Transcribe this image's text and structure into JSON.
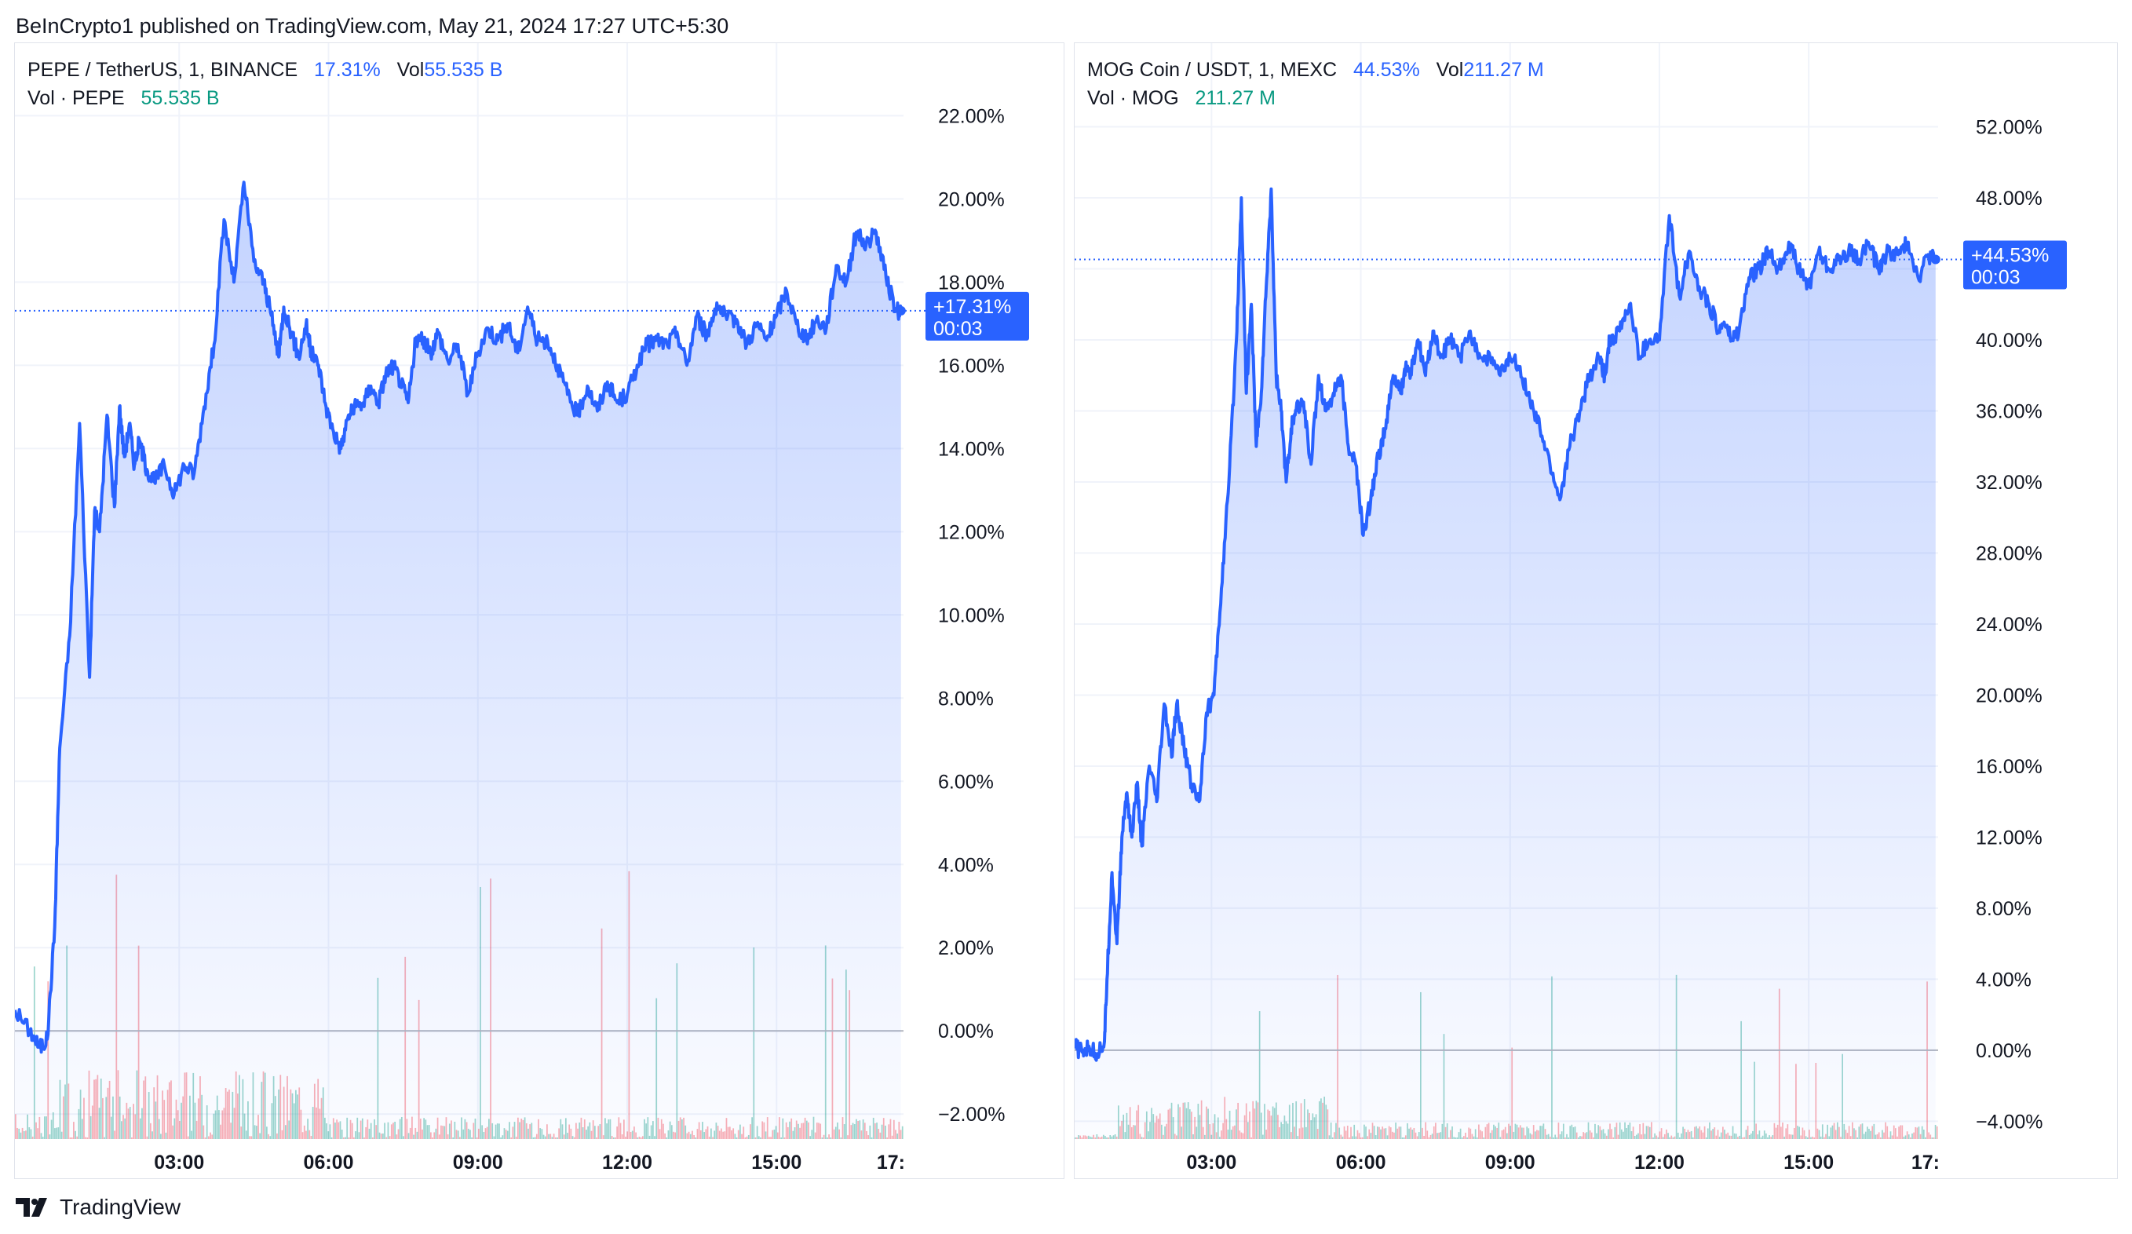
{
  "header": {
    "published": "BeInCrypto1 published on TradingView.com, May 21, 2024 17:27 UTC+5:30"
  },
  "footer": {
    "brand": "TradingView",
    "logo_icon": "tradingview-logo-icon"
  },
  "colors": {
    "line": "#2962ff",
    "fill": "#2962ff",
    "up_vol": "#089981",
    "down_vol": "#f23645",
    "grid": "#f0f3fa",
    "zero": "#b2b5be"
  },
  "panels": [
    {
      "legend": {
        "symbol": "PEPE / TetherUS, 1, BINANCE",
        "change": "17.31%",
        "vol_label": "Vol",
        "vol_value": "55.535 B",
        "vol_row_label": "Vol · PEPE",
        "vol_row_value": "55.535 B"
      },
      "price_label": {
        "value": "+17.31%",
        "countdown": "00:03"
      }
    },
    {
      "legend": {
        "symbol": "MOG Coin / USDT, 1, MEXC",
        "change": "44.53%",
        "vol_label": "Vol",
        "vol_value": "211.27 M",
        "vol_row_label": "Vol · MOG",
        "vol_row_value": "211.27 M"
      },
      "price_label": {
        "value": "+44.53%",
        "countdown": "00:03"
      }
    }
  ],
  "chart_data": [
    {
      "type": "area",
      "x_unit": "hours",
      "x_ticks": [
        "03:00",
        "06:00",
        "09:00",
        "12:00",
        "15:00",
        "17:"
      ],
      "x_tick_values": [
        3,
        6,
        9,
        12,
        15,
        18
      ],
      "xlim": [
        -0.3,
        17.55
      ],
      "y_ticks": [
        "22.00%",
        "20.00%",
        "18.00%",
        "16.00%",
        "14.00%",
        "12.00%",
        "10.00%",
        "8.00%",
        "6.00%",
        "4.00%",
        "2.00%",
        "0.00%",
        "−2.00%"
      ],
      "y_tick_values": [
        22,
        20,
        18,
        16,
        14,
        12,
        10,
        8,
        6,
        4,
        2,
        0,
        -2
      ],
      "ylim": [
        -2.6,
        22.8
      ],
      "last_value": 17.31,
      "series": [
        {
          "x": [
            -0.3,
            0.0,
            0.2,
            0.35,
            0.5,
            0.6,
            0.8,
            1.0,
            1.2,
            1.3,
            1.4,
            1.55,
            1.7,
            1.8,
            1.9,
            2.0,
            2.1,
            2.2,
            2.35,
            2.5,
            2.7,
            2.9,
            3.1,
            3.3,
            3.5,
            3.7,
            3.9,
            4.1,
            4.3,
            4.5,
            4.7,
            4.85,
            5.0,
            5.1,
            5.25,
            5.4,
            5.55,
            5.65,
            5.8,
            5.95,
            6.1,
            6.25,
            6.4,
            6.55,
            6.7,
            6.85,
            7.0,
            7.15,
            7.3,
            7.45,
            7.6,
            7.75,
            7.9,
            8.05,
            8.2,
            8.4,
            8.6,
            8.8,
            9.0,
            9.2,
            9.4,
            9.6,
            9.8,
            10.0,
            10.2,
            10.4,
            10.6,
            10.8,
            11.0,
            11.2,
            11.4,
            11.6,
            11.8,
            12.0,
            12.2,
            12.4,
            12.6,
            12.8,
            13.0,
            13.2,
            13.4,
            13.6,
            13.8,
            14.0,
            14.2,
            14.4,
            14.6,
            14.8,
            15.0,
            15.2,
            15.4,
            15.6,
            15.8,
            16.0,
            16.2,
            16.4,
            16.6,
            16.8,
            17.0,
            17.2,
            17.4,
            17.5
          ],
          "values": [
            0.5,
            0.0,
            -0.4,
            -0.2,
            2.5,
            6.8,
            9.5,
            14.6,
            8.5,
            12.5,
            12.0,
            14.8,
            12.6,
            15.0,
            13.8,
            14.6,
            13.6,
            14.2,
            13.5,
            13.2,
            13.6,
            12.9,
            13.6,
            13.4,
            15.0,
            16.5,
            19.5,
            18.0,
            20.4,
            18.5,
            18.0,
            17.2,
            16.2,
            17.4,
            16.8,
            16.2,
            17.0,
            16.3,
            16.0,
            15.0,
            14.4,
            14.0,
            14.8,
            15.0,
            15.1,
            15.5,
            15.1,
            15.8,
            16.0,
            15.6,
            15.1,
            16.6,
            16.6,
            16.3,
            16.8,
            16.1,
            16.5,
            15.3,
            16.3,
            16.9,
            16.6,
            17.0,
            16.3,
            17.4,
            16.6,
            16.6,
            16.0,
            15.3,
            14.8,
            15.5,
            14.9,
            15.6,
            15.1,
            15.3,
            16.0,
            16.5,
            16.6,
            16.5,
            16.8,
            16.0,
            17.2,
            16.7,
            17.5,
            17.1,
            17.1,
            16.5,
            17.0,
            16.6,
            17.2,
            17.8,
            17.0,
            16.6,
            17.1,
            16.9,
            18.4,
            18.0,
            19.2,
            18.9,
            19.2,
            18.1,
            17.3,
            17.31
          ]
        }
      ],
      "volume_bars": 520
    },
    {
      "type": "area",
      "x_unit": "hours",
      "x_ticks": [
        "03:00",
        "06:00",
        "09:00",
        "12:00",
        "15:00",
        "17:"
      ],
      "x_tick_values": [
        3,
        6,
        9,
        12,
        15,
        18
      ],
      "xlim": [
        0.25,
        17.6
      ],
      "y_ticks": [
        "52.00%",
        "48.00%",
        "44.00%",
        "40.00%",
        "36.00%",
        "32.00%",
        "28.00%",
        "24.00%",
        "20.00%",
        "16.00%",
        "12.00%",
        "8.00%",
        "4.00%",
        "0.00%",
        "−4.00%"
      ],
      "y_tick_values": [
        52,
        48,
        44,
        40,
        36,
        32,
        28,
        24,
        20,
        16,
        12,
        8,
        4,
        0,
        -4
      ],
      "ylim": [
        -5,
        54.5
      ],
      "last_value": 44.53,
      "series": [
        {
          "x": [
            0.25,
            0.4,
            0.55,
            0.7,
            0.85,
            0.9,
            1.0,
            1.1,
            1.2,
            1.3,
            1.4,
            1.5,
            1.6,
            1.75,
            1.9,
            2.05,
            2.2,
            2.3,
            2.45,
            2.6,
            2.75,
            2.9,
            3.05,
            3.2,
            3.35,
            3.5,
            3.6,
            3.7,
            3.8,
            3.9,
            4.0,
            4.1,
            4.2,
            4.3,
            4.4,
            4.5,
            4.6,
            4.7,
            4.85,
            5.0,
            5.15,
            5.3,
            5.45,
            5.6,
            5.75,
            5.9,
            6.05,
            6.2,
            6.35,
            6.5,
            6.65,
            6.8,
            6.9,
            7.0,
            7.15,
            7.3,
            7.45,
            7.6,
            7.8,
            8.0,
            8.2,
            8.4,
            8.6,
            8.8,
            9.0,
            9.2,
            9.4,
            9.6,
            9.8,
            10.0,
            10.2,
            10.4,
            10.6,
            10.8,
            10.9,
            11.0,
            11.2,
            11.4,
            11.6,
            11.8,
            12.0,
            12.2,
            12.4,
            12.6,
            12.8,
            13.0,
            13.2,
            13.3,
            13.45,
            13.6,
            13.8,
            14.0,
            14.2,
            14.4,
            14.6,
            14.8,
            15.0,
            15.2,
            15.4,
            15.6,
            15.8,
            16.0,
            16.2,
            16.4,
            16.6,
            16.8,
            17.0,
            17.2,
            17.4,
            17.55
          ],
          "values": [
            0.2,
            -0.1,
            0.1,
            -0.2,
            0.5,
            4.0,
            10.0,
            6.0,
            12.0,
            14.5,
            12.0,
            15.0,
            11.5,
            16.0,
            14.0,
            19.5,
            16.5,
            19.5,
            17.0,
            15.0,
            14.0,
            19.0,
            20.0,
            26.0,
            32.0,
            40.0,
            48.0,
            37.0,
            42.0,
            34.0,
            37.0,
            43.0,
            48.5,
            38.0,
            36.0,
            32.0,
            35.0,
            36.0,
            36.5,
            33.0,
            38.0,
            36.0,
            37.0,
            38.0,
            34.0,
            33.0,
            29.0,
            31.0,
            33.5,
            35.0,
            38.0,
            37.0,
            38.5,
            38.0,
            40.0,
            38.0,
            40.5,
            39.0,
            40.0,
            39.0,
            40.5,
            39.0,
            39.0,
            38.0,
            39.0,
            38.5,
            36.5,
            35.0,
            33.0,
            31.0,
            34.0,
            36.0,
            38.0,
            39.0,
            38.0,
            40.0,
            40.5,
            42.0,
            39.0,
            40.0,
            40.0,
            47.0,
            42.5,
            45.0,
            43.0,
            42.0,
            40.5,
            41.0,
            40.0,
            40.5,
            43.5,
            44.0,
            45.0,
            44.0,
            45.5,
            44.0,
            43.0,
            45.0,
            44.0,
            44.5,
            45.0,
            44.5,
            45.5,
            44.0,
            45.0,
            44.8,
            45.5,
            43.5,
            44.8,
            44.53
          ]
        }
      ],
      "volume_bars": 520
    }
  ]
}
